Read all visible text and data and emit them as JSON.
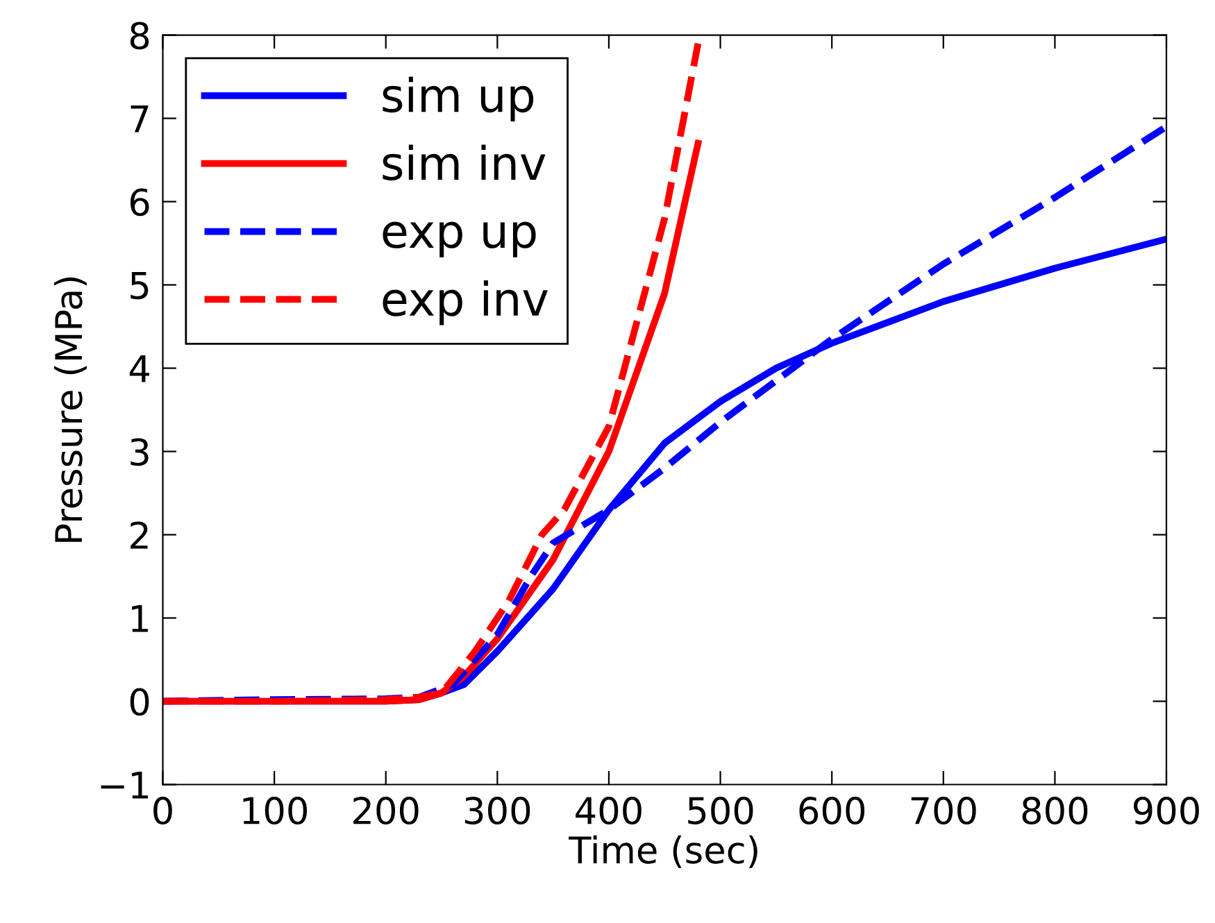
{
  "chart_data": {
    "type": "line",
    "xlabel": "Time (sec)",
    "ylabel": "Pressure (MPa)",
    "xlim": [
      0,
      900
    ],
    "ylim": [
      -1,
      8
    ],
    "xticks": [
      0,
      100,
      200,
      300,
      400,
      500,
      600,
      700,
      800,
      900
    ],
    "yticks": [
      {
        "value": -1,
        "label": "−1"
      },
      0,
      1,
      2,
      3,
      4,
      5,
      6,
      7,
      8
    ],
    "grid": false,
    "legend": "top left",
    "series": [
      {
        "name": "sim up",
        "color": "#0000ff",
        "line_style": "solid",
        "x": [
          0,
          100,
          200,
          230,
          250,
          270,
          300,
          350,
          400,
          450,
          500,
          550,
          600,
          700,
          800,
          900
        ],
        "values": [
          0,
          0,
          0,
          0.02,
          0.1,
          0.2,
          0.6,
          1.35,
          2.3,
          3.1,
          3.6,
          4.0,
          4.3,
          4.8,
          5.2,
          5.55
        ]
      },
      {
        "name": "sim inv",
        "color": "#ff0000",
        "line_style": "solid",
        "x": [
          0,
          100,
          200,
          230,
          250,
          270,
          300,
          350,
          400,
          450,
          480
        ],
        "values": [
          0,
          0,
          0,
          0.02,
          0.1,
          0.3,
          0.75,
          1.7,
          3.0,
          4.9,
          6.7
        ]
      },
      {
        "name": "exp up",
        "color": "#0000ff",
        "line_style": "dashed",
        "x": [
          0,
          100,
          200,
          230,
          260,
          300,
          330,
          350,
          400,
          450,
          500,
          550,
          600,
          700,
          800,
          900
        ],
        "values": [
          0,
          0.02,
          0.03,
          0.05,
          0.2,
          0.8,
          1.5,
          1.9,
          2.3,
          2.8,
          3.35,
          3.85,
          4.35,
          5.25,
          6.05,
          6.9
        ]
      },
      {
        "name": "exp inv",
        "color": "#ff0000",
        "line_style": "dashed",
        "x": [
          0,
          100,
          200,
          230,
          250,
          280,
          310,
          340,
          360,
          400,
          450,
          480
        ],
        "values": [
          0,
          0,
          0.02,
          0.05,
          0.1,
          0.6,
          1.2,
          2.0,
          2.3,
          3.3,
          5.8,
          7.9
        ]
      }
    ]
  }
}
